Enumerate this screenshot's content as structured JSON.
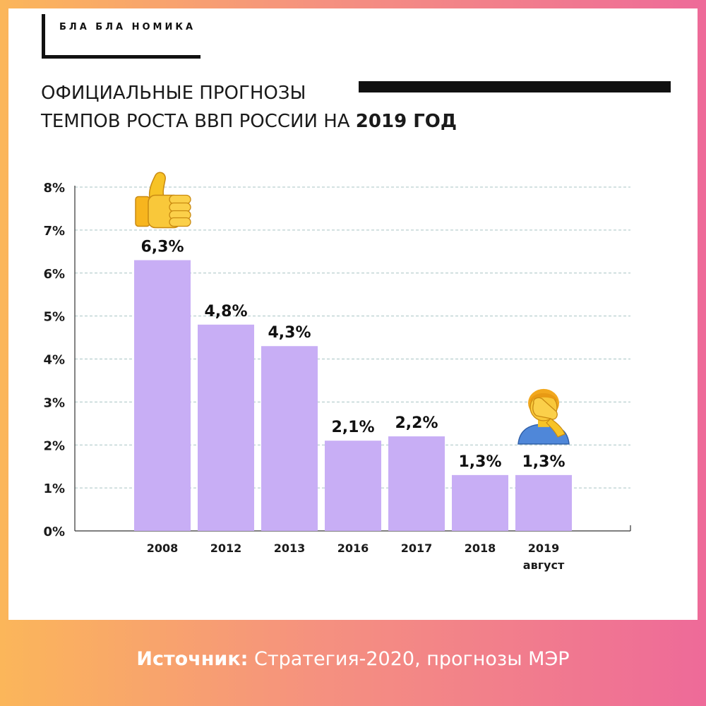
{
  "brand": {
    "text": "БЛА БЛА НОМИКА"
  },
  "header": {
    "title_line1": "ОФИЦИАЛЬНЫЕ ПРОГНОЗЫ",
    "title_line2": "ТЕМПОВ РОСТА ВВП РОССИИ НА ",
    "title_year": "2019 ГОД"
  },
  "chart_data": {
    "type": "bar",
    "title": "ОФИЦИАЛЬНЫЕ ПРОГНОЗЫ ТЕМПОВ РОСТА ВВП РОССИИ НА 2019 ГОД",
    "categories": [
      "2008",
      "2012",
      "2013",
      "2016",
      "2017",
      "2018",
      "2019"
    ],
    "category_sublabels": [
      "",
      "",
      "",
      "",
      "",
      "",
      "август"
    ],
    "values": [
      6.3,
      4.8,
      4.3,
      2.1,
      2.2,
      1.3,
      1.3
    ],
    "value_labels": [
      "6,3%",
      "4,8%",
      "4,3%",
      "2,1%",
      "2,2%",
      "1,3%",
      "1,3%"
    ],
    "yticks": [
      "0%",
      "1%",
      "2%",
      "3%",
      "4%",
      "5%",
      "6%",
      "7%",
      "8%"
    ],
    "ylim": [
      0,
      8
    ],
    "xlabel": "",
    "ylabel": "",
    "grid": true,
    "bar_color": "#c8aef5",
    "annotations": [
      {
        "category": "2008",
        "icon": "thumbs-up-icon"
      },
      {
        "category": "2019",
        "icon": "facepalm-icon"
      }
    ]
  },
  "footer": {
    "source_label": "Источник:",
    "source_text": " Стратегия-2020, прогнозы МЭР"
  },
  "colors": {
    "gradient_left": "#fbb65a",
    "gradient_right": "#ee6a99",
    "bar": "#c8aef5",
    "grid": "#a7c4c4",
    "text": "#1a1a1a"
  }
}
